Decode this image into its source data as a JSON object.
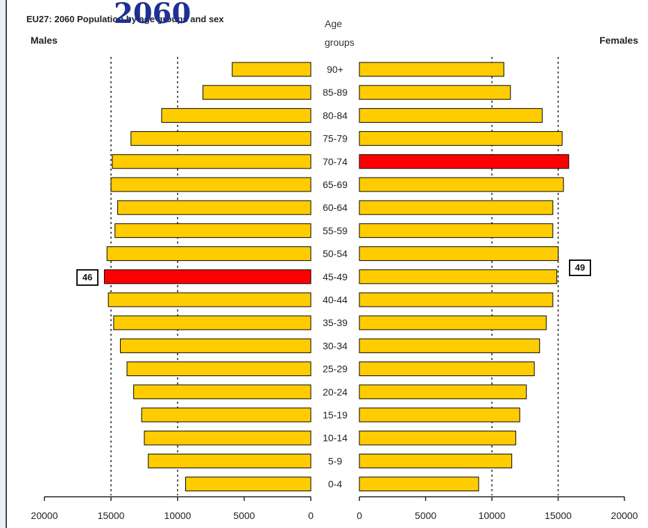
{
  "title": "EU27: 2060 Population by age groups and sex",
  "overlay_text": "2060",
  "males_label": "Males",
  "females_label": "Females",
  "age_header": [
    "Age",
    "groups"
  ],
  "colors": {
    "bar": "#FFCC00",
    "highlight": "#FF0000",
    "outline": "#000000",
    "grid": "#222222"
  },
  "callouts": {
    "males": "46",
    "females": "49"
  },
  "chart_data": {
    "type": "bar",
    "orientation": "horizontal",
    "categories": [
      "90+",
      "85-89",
      "80-84",
      "75-79",
      "70-74",
      "65-69",
      "60-64",
      "55-59",
      "50-54",
      "45-49",
      "40-44",
      "35-39",
      "30-34",
      "25-29",
      "20-24",
      "15-19",
      "10-14",
      "5-9",
      "0-4"
    ],
    "series": [
      {
        "name": "Males",
        "values": [
          5900,
          8100,
          11200,
          13500,
          14900,
          15000,
          14500,
          14700,
          15300,
          15500,
          15200,
          14800,
          14300,
          13800,
          13300,
          12700,
          12500,
          12200,
          9400
        ]
      },
      {
        "name": "Females",
        "values": [
          10900,
          11400,
          13800,
          15300,
          15800,
          15400,
          14600,
          14600,
          15000,
          14900,
          14600,
          14100,
          13600,
          13200,
          12600,
          12100,
          11800,
          11500,
          9000
        ]
      }
    ],
    "highlights": {
      "Males": "45-49",
      "Females": "70-74"
    },
    "xlim": [
      0,
      20000
    ],
    "xticks": [
      "20000",
      "15000",
      "10000",
      "5000",
      "0"
    ],
    "xticks_right": [
      "0",
      "5000",
      "10000",
      "15000",
      "20000"
    ],
    "grid": "vertical dotted"
  }
}
